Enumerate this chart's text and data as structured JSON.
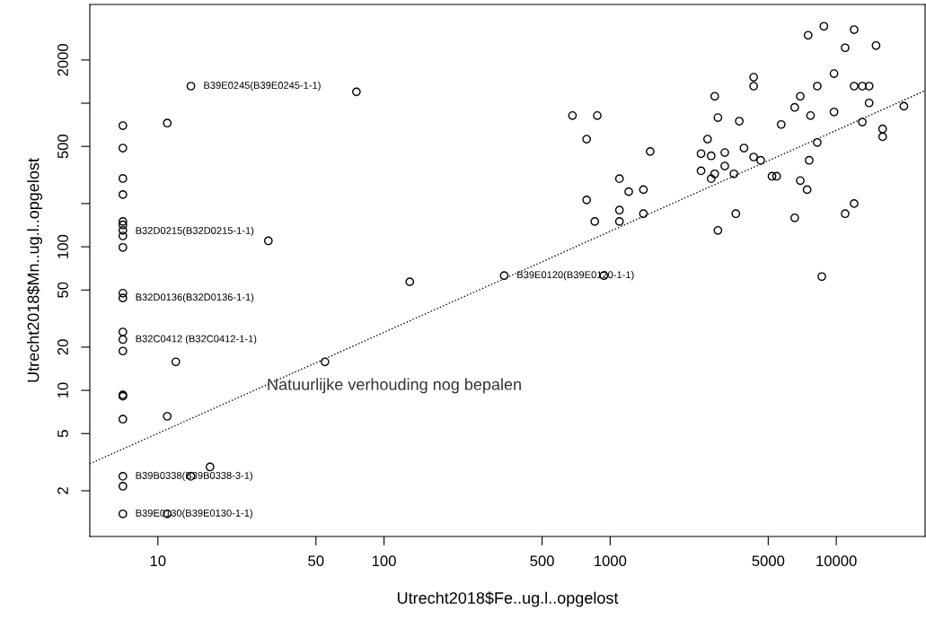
{
  "chart_data": {
    "type": "scatter",
    "xlabel": "Utrecht2018$Fe..ug.l..opgelost",
    "ylabel": "Utrecht2018$Mn..ug.l..opgelost",
    "log": "xy",
    "grid": false,
    "legend": false,
    "marker": "circle",
    "xlim": [
      5,
      24700
    ],
    "ylim": [
      0.96,
      4870
    ],
    "xticks": [
      10,
      50,
      100,
      500,
      1000,
      5000,
      10000
    ],
    "yticks": [
      2,
      5,
      10,
      20,
      50,
      100,
      {
        "value": 200,
        "label": null
      },
      500,
      {
        "value": 1000,
        "label": null
      },
      2000
    ],
    "series": [
      {
        "color": "#000000",
        "x": [
          7,
          7,
          7,
          7,
          7,
          7,
          7,
          7,
          7,
          7,
          7,
          7,
          7,
          7,
          7,
          7,
          7,
          7,
          7,
          7,
          14.0,
          75.5,
          11.0,
          30.8,
          12.0,
          54.8,
          11.0,
          17.0,
          14.0,
          11.0,
          130,
          340,
          938,
          681,
          877,
          787,
          1503,
          1099,
          1208,
          1403,
          787,
          1099,
          855,
          1099,
          1403,
          2900,
          4310,
          4310,
          2996,
          3724,
          2696,
          2523,
          2797,
          3213,
          3907,
          4310,
          4630,
          2523,
          2900,
          2797,
          3213,
          3525,
          3594,
          2996,
          5706,
          6547,
          6930,
          7506,
          8813,
          10940,
          11990,
          14990,
          9770,
          8240,
          11990,
          13030,
          13970,
          13970,
          7690,
          9770,
          13030,
          19900,
          16030,
          16030,
          8240,
          7590,
          5196,
          5446,
          6930,
          7430,
          6547,
          10940,
          11990,
          8630
        ],
        "values": [
          698,
          487,
          299,
          231,
          150,
          142,
          130,
          119,
          99,
          47.5,
          44,
          25.5,
          22.6,
          18.8,
          9.3,
          9.1,
          6.3,
          2.52,
          2.15,
          1.38,
          1315,
          1200,
          727,
          110,
          15.8,
          15.8,
          6.6,
          2.93,
          2.52,
          1.38,
          57,
          63,
          63,
          820,
          820,
          562,
          461,
          298,
          242,
          250,
          212,
          180,
          150,
          150,
          170,
          1117,
          1517,
          1315,
          794,
          750,
          562,
          445,
          430,
          453,
          487,
          422,
          400,
          338,
          322,
          298,
          365,
          322,
          170,
          130,
          711,
          935,
          1117,
          2973,
          3433,
          2432,
          3254,
          2521,
          1607,
          1315,
          1315,
          1315,
          1315,
          1004,
          820,
          869,
          739,
          953,
          662,
          584,
          533,
          400,
          310,
          310,
          289,
          250,
          159,
          170,
          200,
          62
        ]
      },
      {
        "type": "line",
        "color": "#000000",
        "line_style": "dotted",
        "marker": "none",
        "x": [
          5,
          24700
        ],
        "values": [
          3.08,
          1223
        ]
      }
    ],
    "annotations": [
      {
        "text": "B39E0245(B39E0245-1-1)",
        "x": 14.0,
        "y": 1315
      },
      {
        "text": "B32D0215(B32D0215-1-1)",
        "x": 7,
        "y": 128
      },
      {
        "text": "B32D0136(B32D0136-1-1)",
        "x": 7,
        "y": 44
      },
      {
        "text": "B32C0412 (B32C0412-1-1)",
        "x": 7,
        "y": 22.6
      },
      {
        "text": "B39B0338(B39B0338-3-1)",
        "x": 7,
        "y": 2.52
      },
      {
        "text": "B39E0130(B39E0130-1-1)",
        "x": 7,
        "y": 1.38
      },
      {
        "text": "B39E0120(B39E0120-1-1)",
        "x": 340,
        "y": 63
      },
      "Natuurlijke verhouding nog bepalen"
    ]
  }
}
